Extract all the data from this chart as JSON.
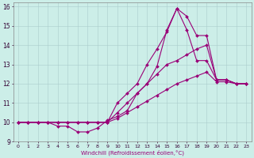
{
  "xlabel": "Windchill (Refroidissement éolien,°C)",
  "background_color": "#cceee8",
  "grid_color": "#aacccc",
  "line_color": "#990077",
  "xlim": [
    -0.5,
    23.5
  ],
  "ylim": [
    9,
    16.2
  ],
  "yticks": [
    9,
    10,
    11,
    12,
    13,
    14,
    15,
    16
  ],
  "xticks": [
    0,
    1,
    2,
    3,
    4,
    5,
    6,
    7,
    8,
    9,
    10,
    11,
    12,
    13,
    14,
    15,
    16,
    17,
    18,
    19,
    20,
    21,
    22,
    23
  ],
  "lines": [
    {
      "x": [
        0,
        1,
        2,
        3,
        4,
        5,
        6,
        7,
        8,
        9,
        10,
        11,
        12,
        13,
        14,
        15,
        16,
        17,
        18,
        19,
        20,
        21,
        22,
        23
      ],
      "y": [
        10.0,
        10.0,
        10.0,
        10.0,
        10.0,
        10.0,
        10.0,
        10.0,
        10.0,
        10.0,
        10.2,
        10.5,
        10.8,
        11.1,
        11.4,
        11.7,
        12.0,
        12.2,
        12.4,
        12.6,
        12.1,
        12.1,
        12.0,
        12.0
      ]
    },
    {
      "x": [
        0,
        1,
        2,
        3,
        4,
        5,
        6,
        7,
        8,
        9,
        10,
        11,
        12,
        13,
        14,
        15,
        16,
        17,
        18,
        19,
        20,
        21,
        22,
        23
      ],
      "y": [
        10.0,
        10.0,
        10.0,
        10.0,
        10.0,
        10.0,
        10.0,
        10.0,
        10.0,
        10.0,
        10.5,
        11.0,
        11.5,
        12.0,
        12.5,
        13.0,
        13.2,
        13.5,
        13.8,
        14.0,
        12.2,
        12.2,
        12.0,
        12.0
      ]
    },
    {
      "x": [
        0,
        1,
        2,
        3,
        4,
        5,
        6,
        7,
        8,
        9,
        10,
        11,
        12,
        13,
        14,
        15,
        16,
        17,
        18,
        19,
        20,
        21,
        22,
        23
      ],
      "y": [
        10.0,
        10.0,
        10.0,
        10.0,
        10.0,
        10.0,
        10.0,
        10.0,
        10.0,
        10.0,
        11.0,
        11.5,
        12.0,
        13.0,
        13.8,
        14.7,
        15.9,
        15.5,
        14.5,
        14.5,
        12.2,
        12.2,
        12.0,
        12.0
      ]
    },
    {
      "x": [
        0,
        1,
        2,
        3,
        4,
        5,
        6,
        7,
        8,
        9,
        10,
        11,
        12,
        13,
        14,
        15,
        16,
        17,
        18,
        19,
        20,
        21,
        22,
        23
      ],
      "y": [
        10.0,
        10.0,
        10.0,
        10.0,
        9.8,
        9.8,
        9.5,
        9.5,
        9.7,
        10.1,
        10.3,
        10.6,
        11.5,
        12.0,
        12.9,
        14.8,
        15.9,
        14.8,
        13.2,
        13.2,
        12.2,
        12.2,
        12.0,
        12.0
      ]
    }
  ]
}
